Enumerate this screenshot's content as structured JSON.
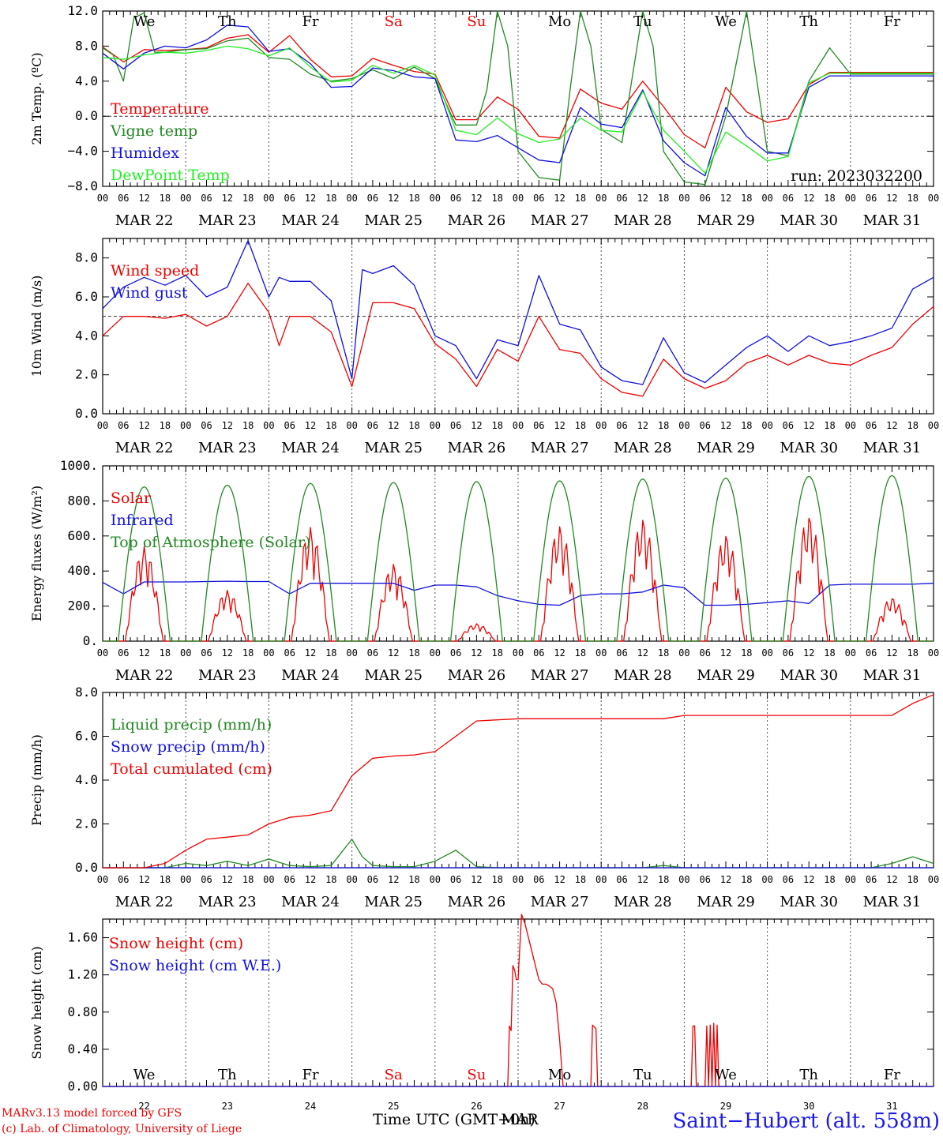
{
  "days": [
    "22",
    "23",
    "24",
    "25",
    "26",
    "27",
    "28",
    "29",
    "30",
    "31"
  ],
  "date_labels": [
    "MAR 22",
    "MAR 23",
    "MAR 24",
    "MAR 25",
    "MAR 26",
    "MAR 27",
    "MAR 28",
    "MAR 29",
    "MAR 30",
    "MAR 31"
  ],
  "hour_ticks": [
    "00",
    "06",
    "12",
    "18"
  ],
  "end_tick": "00",
  "weekdays": [
    {
      "label": "We",
      "color": "#000000"
    },
    {
      "label": "Th",
      "color": "#000000"
    },
    {
      "label": "Fr",
      "color": "#000000"
    },
    {
      "label": "Sa",
      "color": "#ee0000"
    },
    {
      "label": "Su",
      "color": "#ee0000"
    },
    {
      "label": "Mo",
      "color": "#000000"
    },
    {
      "label": "Tu",
      "color": "#000000"
    },
    {
      "label": "We",
      "color": "#000000"
    },
    {
      "label": "Th",
      "color": "#000000"
    },
    {
      "label": "Fr",
      "color": "#000000"
    }
  ],
  "run_label": "run: 2023032200",
  "footer": {
    "model": "MARv3.13 model forced by GFS",
    "copyright": "(c) Lab. of Climatology, University of Liege",
    "xlabel": "Time UTC (GMT+0h)",
    "xlabel_overlay": "MAR",
    "station": "Saint−Hubert (alt. 558m)"
  },
  "chart_data": [
    {
      "id": "temperature",
      "type": "line",
      "ylabel": "2m Temp. (ºC)",
      "ylim": [
        -8,
        12
      ],
      "yticks": [
        "−8.0",
        "−4.0",
        "0.0",
        "4.0",
        "8.0",
        "12.0"
      ],
      "ytick_values": [
        -8,
        -4,
        0,
        4,
        8,
        12
      ],
      "ref_line": 0,
      "series": [
        {
          "name": "Temperature",
          "color": "#ee0000",
          "x": [
            0,
            6,
            12,
            18,
            24,
            30,
            36,
            42,
            48,
            54,
            60,
            66,
            72,
            78,
            84,
            90,
            96,
            102,
            108,
            114,
            120,
            126,
            132,
            138,
            144,
            150,
            156,
            162,
            168,
            174,
            180,
            186,
            192,
            198,
            204,
            210,
            216,
            222,
            228,
            234,
            240
          ],
          "values": [
            7.9,
            6.2,
            7.6,
            7.5,
            7.6,
            7.8,
            8.9,
            9.3,
            7.3,
            9.2,
            6.5,
            4.5,
            4.6,
            6.6,
            5.8,
            5.1,
            4.8,
            -0.4,
            -0.4,
            2.2,
            0.8,
            -2.3,
            -2.5,
            3.1,
            1.5,
            0.8,
            4.0,
            1.1,
            -2.1,
            -3.6,
            3.3,
            0.5,
            -0.7,
            -0.3,
            3.6,
            5.0,
            5.0,
            5.0,
            5.0,
            5.0,
            5.0
          ]
        },
        {
          "name": "Vigne temp",
          "color": "#228822",
          "x": [
            0,
            3,
            6,
            9,
            12,
            15,
            18,
            24,
            30,
            36,
            42,
            48,
            54,
            60,
            66,
            72,
            78,
            84,
            90,
            96,
            102,
            108,
            111,
            114,
            117,
            120,
            126,
            132,
            135,
            138,
            141,
            144,
            150,
            156,
            159,
            162,
            168,
            174,
            180,
            186,
            192,
            198,
            204,
            210,
            216,
            222,
            228,
            234,
            240
          ],
          "values": [
            7.8,
            7.0,
            4.0,
            11.2,
            11.8,
            7.3,
            7.3,
            7.6,
            7.7,
            8.6,
            8.9,
            6.7,
            6.5,
            4.8,
            4.0,
            4.3,
            5.3,
            4.3,
            5.6,
            4.3,
            -1.0,
            -1.0,
            3.0,
            12.0,
            8.0,
            -4.0,
            -7.0,
            -7.3,
            3.0,
            12.0,
            8.0,
            -1.5,
            -3.0,
            12.0,
            8.0,
            -4.0,
            -7.5,
            -7.8,
            0.0,
            12.0,
            -4.0,
            -4.5,
            4.0,
            7.8,
            4.8,
            4.8,
            4.8,
            4.8,
            4.8
          ]
        },
        {
          "name": "Humidex",
          "color": "#1010dd",
          "x": [
            0,
            6,
            12,
            18,
            24,
            30,
            36,
            42,
            48,
            54,
            60,
            66,
            72,
            78,
            84,
            90,
            96,
            102,
            108,
            114,
            120,
            126,
            132,
            138,
            144,
            150,
            156,
            162,
            168,
            174,
            180,
            186,
            192,
            198,
            204,
            210,
            216,
            222,
            228,
            234,
            240
          ],
          "values": [
            7.2,
            5.4,
            7.2,
            8.0,
            7.8,
            8.7,
            10.4,
            10.2,
            7.4,
            7.7,
            6.0,
            3.3,
            3.4,
            5.5,
            5.2,
            4.5,
            4.3,
            -2.7,
            -2.9,
            -2.2,
            -3.6,
            -5.0,
            -5.3,
            1.0,
            -0.9,
            -1.3,
            3.0,
            -2.8,
            -5.3,
            -6.8,
            1.0,
            -2.3,
            -4.2,
            -4.2,
            3.3,
            4.6,
            4.6,
            4.6,
            4.6,
            4.6,
            4.6
          ]
        },
        {
          "name": "DewPoint Temp",
          "color": "#22ee22",
          "x": [
            0,
            6,
            12,
            18,
            24,
            30,
            36,
            42,
            48,
            54,
            60,
            66,
            72,
            78,
            84,
            90,
            96,
            102,
            108,
            114,
            120,
            126,
            132,
            138,
            144,
            150,
            156,
            162,
            168,
            174,
            180,
            186,
            192,
            198,
            204,
            210,
            216,
            222,
            228,
            234,
            240
          ],
          "values": [
            6.7,
            6.5,
            7.0,
            7.3,
            7.2,
            7.5,
            8.0,
            7.7,
            6.9,
            7.8,
            5.6,
            3.9,
            4.1,
            5.8,
            4.9,
            5.8,
            4.7,
            -1.6,
            -2.1,
            -0.2,
            -2.0,
            -3.0,
            -2.6,
            -0.2,
            -1.6,
            -1.8,
            2.8,
            -1.6,
            -4.0,
            -6.5,
            -1.8,
            -3.4,
            -5.1,
            -4.6,
            3.8,
            4.9,
            4.9,
            4.9,
            4.9,
            4.9,
            4.9
          ]
        }
      ]
    },
    {
      "id": "wind",
      "type": "line",
      "ylabel": "10m Wind (m/s)",
      "ylim": [
        0,
        9
      ],
      "yticks": [
        "0.0",
        "2.0",
        "4.0",
        "6.0",
        "8.0"
      ],
      "ytick_values": [
        0,
        2,
        4,
        6,
        8
      ],
      "ref_line": 5,
      "series": [
        {
          "name": "Wind speed",
          "color": "#ee0000",
          "x": [
            0,
            6,
            12,
            18,
            24,
            30,
            36,
            42,
            48,
            51,
            54,
            60,
            66,
            72,
            78,
            84,
            90,
            96,
            102,
            108,
            114,
            120,
            126,
            132,
            138,
            144,
            150,
            156,
            162,
            168,
            174,
            180,
            186,
            192,
            198,
            204,
            210,
            216,
            222,
            228,
            234,
            240
          ],
          "values": [
            4.0,
            5.0,
            5.0,
            4.9,
            5.1,
            4.5,
            5.0,
            6.7,
            5.2,
            3.5,
            5.0,
            5.0,
            4.2,
            1.4,
            5.7,
            5.7,
            5.4,
            3.6,
            2.8,
            1.4,
            3.3,
            2.7,
            5.0,
            3.3,
            3.1,
            1.8,
            1.1,
            0.9,
            2.8,
            1.8,
            1.3,
            1.7,
            2.6,
            3.0,
            2.5,
            3.0,
            2.6,
            2.5,
            3.0,
            3.4,
            4.6,
            5.5
          ]
        },
        {
          "name": "Wind gust",
          "color": "#1010dd",
          "x": [
            0,
            6,
            12,
            18,
            24,
            30,
            36,
            42,
            48,
            51,
            54,
            60,
            66,
            72,
            75,
            78,
            84,
            90,
            96,
            102,
            108,
            114,
            120,
            126,
            132,
            138,
            144,
            150,
            156,
            162,
            168,
            174,
            180,
            186,
            192,
            198,
            204,
            210,
            216,
            222,
            228,
            234,
            240
          ],
          "values": [
            5.4,
            6.5,
            7.0,
            6.6,
            7.1,
            6.0,
            6.5,
            8.9,
            6.0,
            7.0,
            6.8,
            6.8,
            5.8,
            1.8,
            7.4,
            7.2,
            7.6,
            6.6,
            4.0,
            3.5,
            1.8,
            3.8,
            3.5,
            7.1,
            4.6,
            4.3,
            2.4,
            1.7,
            1.5,
            3.9,
            2.1,
            1.6,
            2.5,
            3.4,
            4.0,
            3.2,
            4.0,
            3.5,
            3.7,
            4.0,
            4.4,
            6.4,
            7.0
          ]
        }
      ]
    },
    {
      "id": "energy",
      "type": "line",
      "ylabel": "Energy fluxes (W/m²)",
      "ylim": [
        0,
        1000
      ],
      "yticks": [
        "0.",
        "200.",
        "400.",
        "600.",
        "800.",
        "1000."
      ],
      "ytick_values": [
        0,
        200,
        400,
        600,
        800,
        1000
      ],
      "series": [
        {
          "name": "Solar",
          "color": "#ee0000",
          "peaks": [
            540,
            290,
            650,
            440,
            100,
            660,
            700,
            610,
            720,
            250
          ]
        },
        {
          "name": "Infrared",
          "color": "#1010dd",
          "x": [
            0,
            6,
            12,
            18,
            24,
            30,
            36,
            42,
            48,
            54,
            60,
            66,
            72,
            78,
            84,
            90,
            96,
            102,
            108,
            114,
            120,
            126,
            132,
            138,
            144,
            150,
            156,
            162,
            168,
            174,
            180,
            186,
            192,
            198,
            204,
            210,
            216,
            222,
            228,
            234,
            240
          ],
          "values": [
            335,
            270,
            338,
            338,
            338,
            340,
            342,
            340,
            340,
            270,
            330,
            330,
            330,
            330,
            330,
            290,
            320,
            320,
            310,
            260,
            230,
            210,
            205,
            260,
            270,
            270,
            280,
            320,
            305,
            205,
            205,
            210,
            220,
            230,
            215,
            320,
            325,
            325,
            325,
            325,
            330
          ]
        },
        {
          "name": "Top of Atmosphere (Solar)",
          "color": "#228822",
          "peaks": [
            880,
            890,
            900,
            905,
            910,
            915,
            925,
            930,
            940,
            945
          ]
        }
      ]
    },
    {
      "id": "precip",
      "type": "line",
      "ylabel": "Precip (mm/h)",
      "ylim": [
        0,
        8
      ],
      "yticks": [
        "0.0",
        "2.0",
        "4.0",
        "6.0",
        "8.0"
      ],
      "ytick_values": [
        0,
        2,
        4,
        6,
        8
      ],
      "series": [
        {
          "name": "Liquid precip (mm/h)",
          "color": "#228822",
          "x": [
            0,
            18,
            24,
            30,
            36,
            42,
            48,
            54,
            60,
            66,
            72,
            75,
            78,
            84,
            90,
            96,
            102,
            108,
            114,
            120,
            126,
            132,
            138,
            144,
            150,
            156,
            162,
            168,
            174,
            180,
            186,
            192,
            198,
            204,
            210,
            216,
            222,
            228,
            234,
            240
          ],
          "values": [
            0,
            0,
            0.2,
            0.1,
            0.3,
            0.1,
            0.4,
            0.1,
            0.05,
            0.1,
            1.3,
            0.5,
            0.1,
            0.05,
            0.05,
            0.3,
            0.8,
            0.05,
            0,
            0,
            0,
            0,
            0,
            0,
            0,
            0,
            0.1,
            0,
            0,
            0,
            0,
            0,
            0,
            0,
            0,
            0,
            0,
            0.2,
            0.5,
            0.2
          ]
        },
        {
          "name": "Snow precip (mm/h)",
          "color": "#1010dd",
          "x": [
            0,
            240
          ],
          "values": [
            0,
            0
          ]
        },
        {
          "name": "Total cumulated (cm)",
          "color": "#ee0000",
          "x": [
            0,
            12,
            18,
            24,
            30,
            36,
            42,
            48,
            54,
            60,
            66,
            72,
            78,
            84,
            90,
            96,
            102,
            108,
            114,
            120,
            126,
            132,
            138,
            144,
            150,
            156,
            162,
            168,
            174,
            180,
            186,
            192,
            198,
            204,
            210,
            216,
            222,
            228,
            234,
            240
          ],
          "values": [
            0,
            0,
            0.2,
            0.8,
            1.3,
            1.4,
            1.5,
            2.0,
            2.3,
            2.4,
            2.6,
            4.2,
            5.0,
            5.1,
            5.15,
            5.3,
            6.0,
            6.7,
            6.75,
            6.8,
            6.8,
            6.8,
            6.8,
            6.8,
            6.8,
            6.8,
            6.8,
            6.95,
            6.95,
            6.95,
            6.95,
            6.95,
            6.95,
            6.95,
            6.95,
            6.95,
            6.95,
            6.95,
            7.5,
            7.9
          ]
        }
      ]
    },
    {
      "id": "snow",
      "type": "line",
      "ylabel": "Snow height (cm)",
      "ylim": [
        0,
        1.8
      ],
      "yticks": [
        "0.00",
        "0.40",
        "0.80",
        "1.20",
        "1.60"
      ],
      "ytick_values": [
        0,
        0.4,
        0.8,
        1.2,
        1.6
      ],
      "series": [
        {
          "name": "Snow height (cm)",
          "color": "#ee0000",
          "x": [
            0,
            117,
            117.5,
            118,
            118.5,
            119,
            119.5,
            120,
            121,
            122,
            123,
            124,
            125,
            126,
            127,
            128,
            129,
            130,
            131,
            132,
            133,
            134,
            135,
            136,
            137,
            141,
            141.5,
            142,
            142.5,
            143,
            170,
            170.5,
            171,
            171.5,
            172,
            174,
            174.5,
            175,
            175.5,
            176,
            176.5,
            177,
            177.5,
            178,
            240
          ],
          "values": [
            0,
            0,
            0.65,
            0.6,
            1.3,
            1.25,
            1.15,
            1.15,
            1.85,
            1.75,
            1.6,
            1.45,
            1.3,
            1.15,
            1.1,
            1.1,
            1.08,
            1.05,
            0.9,
            0.5,
            0.0,
            0.0,
            0.0,
            0.0,
            0.0,
            0.0,
            0.66,
            0.64,
            0.62,
            0.0,
            0,
            0.65,
            0.65,
            0.0,
            0,
            0,
            0.65,
            0.0,
            0.66,
            0.0,
            0.68,
            0.0,
            0.66,
            0,
            0
          ]
        },
        {
          "name": "Snow height (cm W.E.)",
          "color": "#1010dd",
          "x": [
            0,
            240
          ],
          "values": [
            0,
            0
          ]
        }
      ]
    }
  ]
}
